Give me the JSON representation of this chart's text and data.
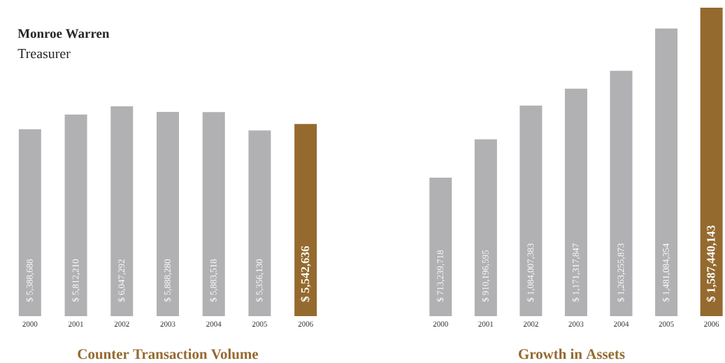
{
  "chart_data": [
    {
      "type": "bar",
      "title": "Counter Transaction Volume",
      "annotations": [
        "Monroe Warren",
        "Treasurer"
      ],
      "categories": [
        "2000",
        "2001",
        "2002",
        "2003",
        "2004",
        "2005",
        "2006"
      ],
      "values": [
        5388688,
        5812210,
        6047292,
        5888280,
        5883518,
        5356130,
        5542636
      ],
      "colors": [
        "#b1b1b4",
        "#b1b1b4",
        "#b1b1b4",
        "#b1b1b4",
        "#b1b1b4",
        "#b1b1b4",
        "#956a2f"
      ],
      "value_labels": [
        "$ 5,388,688",
        "$ 5,812,210",
        "$ 6,047,292",
        "$ 5,888,280",
        "$ 5,883,518",
        "$ 5,356,130",
        "$ 5,542,636"
      ],
      "relative": false
    },
    {
      "type": "bar",
      "title": "Growth in Assets",
      "categories": [
        "2000",
        "2001",
        "2002",
        "2003",
        "2004",
        "2005",
        "2006"
      ],
      "values": [
        713239718,
        910196595,
        1084007383,
        1171317847,
        1263255873,
        1481084354,
        1587440143
      ],
      "colors": [
        "#b1b1b4",
        "#b1b1b4",
        "#b1b1b4",
        "#b1b1b4",
        "#b1b1b4",
        "#b1b1b4",
        "#956a2f"
      ],
      "value_labels": [
        "$ 713,239,718",
        "$ 910,196,595",
        "$ 1,084,007,383",
        "$ 1,171,317,847",
        "$ 1,263,255,873",
        "$ 1,481,084,354",
        "$ 1,587,440,143"
      ],
      "relative": false
    }
  ]
}
